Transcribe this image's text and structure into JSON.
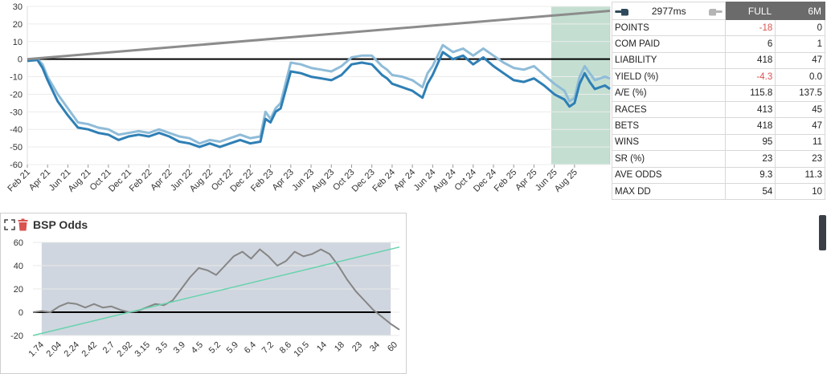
{
  "toolbar": {
    "timer": "2977ms"
  },
  "stats": {
    "col_full": "FULL",
    "col_6m": "6M",
    "rows": [
      {
        "label": "POINTS",
        "full": "-18",
        "m6": "0",
        "full_neg": true
      },
      {
        "label": "COM PAID",
        "full": "6",
        "m6": "1"
      },
      {
        "label": "LIABILITY",
        "full": "418",
        "m6": "47"
      },
      {
        "label": "YIELD (%)",
        "full": "-4.3",
        "m6": "0.0",
        "full_neg": true
      },
      {
        "label": "A/E (%)",
        "full": "115.8",
        "m6": "137.5"
      },
      {
        "label": "RACES",
        "full": "413",
        "m6": "45"
      },
      {
        "label": "BETS",
        "full": "418",
        "m6": "47"
      },
      {
        "label": "WINS",
        "full": "95",
        "m6": "11"
      },
      {
        "label": "SR (%)",
        "full": "23",
        "m6": "23"
      },
      {
        "label": "AVE ODDS",
        "full": "9.3",
        "m6": "11.3"
      },
      {
        "label": "MAX DD",
        "full": "54",
        "m6": "10"
      }
    ]
  },
  "panel": {
    "title": "BSP Odds"
  },
  "chart_data": [
    {
      "type": "line",
      "ylim": [
        -60,
        30
      ],
      "yticks": [
        30,
        20,
        10,
        0,
        -10,
        -20,
        -30,
        -40,
        -50,
        -60
      ],
      "xlabels": [
        "Feb 21",
        "Apr 21",
        "Jun 21",
        "Aug 21",
        "Oct 21",
        "Dec 21",
        "Feb 22",
        "Apr 22",
        "Jun 22",
        "Aug 22",
        "Oct 22",
        "Dec 22",
        "Feb 23",
        "Apr 23",
        "Jun 23",
        "Aug 23",
        "Oct 23",
        "Dec 23",
        "Feb 24",
        "Apr 24",
        "Jun 24",
        "Aug 24",
        "Oct 24",
        "Dec 24",
        "Feb 25",
        "Apr 25",
        "Jun 25",
        "Aug 25"
      ],
      "x_month_range": [
        0,
        57.5
      ],
      "highlight_months": [
        51.7,
        57.5
      ],
      "colors": {
        "pl": "#2e7fb5",
        "pl_light": "#8fbcd8",
        "trend": "#8c8c8c",
        "highlight": "#9ccab4"
      },
      "series": [
        {
          "key": "pl_light",
          "x": [
            0,
            1,
            1.5,
            2,
            2.5,
            3,
            4,
            5,
            6,
            7,
            8,
            9,
            10,
            11,
            12,
            13,
            14,
            15,
            16,
            17,
            18,
            19,
            20,
            21,
            22,
            23,
            23.5,
            24,
            24.5,
            25,
            26,
            27,
            28,
            29,
            30,
            31,
            32,
            33,
            34,
            35,
            35.5,
            36,
            37,
            38,
            39,
            39.5,
            40,
            41,
            42,
            43,
            44,
            45,
            46,
            47,
            48,
            49,
            50,
            51,
            52,
            53,
            53.5,
            54,
            54.5,
            55,
            55.5,
            56,
            57,
            57.5
          ],
          "y": [
            -1,
            0,
            -3,
            -10,
            -15,
            -20,
            -28,
            -36,
            -37,
            -39,
            -40,
            -43,
            -42,
            -41,
            -42,
            -40,
            -42,
            -44,
            -45,
            -48,
            -46,
            -47,
            -45,
            -43,
            -45,
            -44,
            -30,
            -34,
            -28,
            -25,
            -2,
            -3,
            -5,
            -6,
            -7,
            -4,
            1,
            2,
            2,
            -4,
            -6,
            -9,
            -10,
            -12,
            -16,
            -8,
            -4,
            8,
            4,
            6,
            2,
            6,
            2,
            -2,
            -5,
            -6,
            -4,
            -9,
            -14,
            -18,
            -24,
            -22,
            -10,
            -4,
            -8,
            -12,
            -10,
            -11
          ]
        },
        {
          "key": "pl",
          "x": [
            0,
            1,
            1.5,
            2,
            2.5,
            3,
            4,
            5,
            6,
            7,
            8,
            9,
            10,
            11,
            12,
            13,
            14,
            15,
            16,
            17,
            18,
            19,
            20,
            21,
            22,
            23,
            23.5,
            24,
            24.5,
            25,
            26,
            27,
            28,
            29,
            30,
            31,
            32,
            33,
            34,
            35,
            35.5,
            36,
            37,
            38,
            39,
            39.5,
            40,
            41,
            42,
            43,
            44,
            45,
            46,
            47,
            48,
            49,
            50,
            51,
            52,
            53,
            53.5,
            54,
            54.5,
            55,
            55.5,
            56,
            57,
            57.5
          ],
          "y": [
            -1,
            -0.5,
            -5,
            -12,
            -18,
            -24,
            -32,
            -39,
            -40,
            -42,
            -43,
            -46,
            -44,
            -43,
            -44,
            -42,
            -44,
            -47,
            -48,
            -50,
            -48,
            -50,
            -48,
            -46,
            -48,
            -47,
            -34,
            -36,
            -30,
            -28,
            -7,
            -8,
            -10,
            -11,
            -12,
            -9,
            -3,
            -2,
            -3,
            -9,
            -11,
            -14,
            -16,
            -18,
            -22,
            -14,
            -9,
            4,
            0,
            2,
            -3,
            1,
            -4,
            -8,
            -12,
            -13,
            -11,
            -15,
            -20,
            -23,
            -27,
            -25,
            -14,
            -8,
            -13,
            -17,
            -15,
            -17
          ]
        },
        {
          "key": "trend",
          "x": [
            0,
            57.5
          ],
          "y": [
            0,
            27.5
          ]
        }
      ]
    },
    {
      "type": "line",
      "title": "BSP Odds",
      "ylim": [
        -20,
        60
      ],
      "yticks": [
        60,
        40,
        20,
        0,
        -20
      ],
      "categories": [
        "1.74",
        "2.04",
        "2.24",
        "2.42",
        "2.7",
        "2.92",
        "3.15",
        "3.5",
        "3.9",
        "4.5",
        "5.2",
        "5.9",
        "6.4",
        "7.2",
        "8.6",
        "10.5",
        "14",
        "18",
        "23",
        "34",
        "60"
      ],
      "highlight_range": [
        1,
        41
      ],
      "colors": {
        "pl": "#858585",
        "trend": "#66d3ad",
        "highlight": "#c8cfd9"
      },
      "series": [
        {
          "key": "pl",
          "x": [
            0,
            1,
            2,
            3,
            4,
            5,
            6,
            7,
            8,
            9,
            10,
            11,
            12,
            13,
            14,
            15,
            16,
            17,
            18,
            19,
            20,
            21,
            22,
            23,
            24,
            25,
            26,
            27,
            28,
            29,
            30,
            31,
            32,
            33,
            34,
            35,
            36,
            37,
            38,
            39,
            40,
            41,
            42
          ],
          "y": [
            0,
            1,
            0,
            5,
            8,
            7,
            4,
            7,
            4,
            5,
            2,
            0,
            1,
            4,
            7,
            6,
            10,
            20,
            30,
            38,
            36,
            32,
            40,
            48,
            52,
            46,
            54,
            48,
            40,
            44,
            52,
            48,
            50,
            54,
            50,
            40,
            28,
            18,
            10,
            2,
            -4,
            -10,
            -15
          ]
        },
        {
          "key": "trend",
          "x": [
            0,
            42
          ],
          "y": [
            -20,
            56
          ]
        }
      ]
    }
  ]
}
